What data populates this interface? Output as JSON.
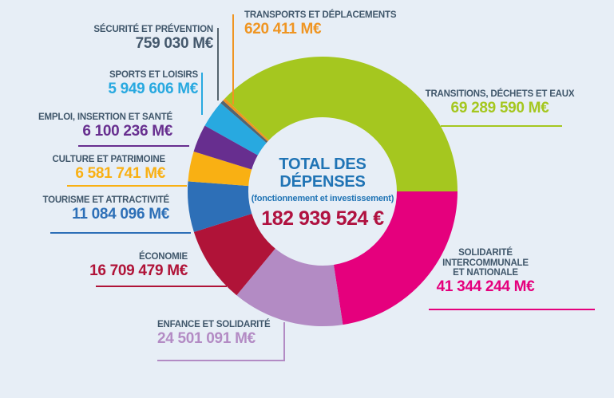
{
  "chart_data": {
    "type": "pie",
    "variant": "donut",
    "title": "TOTAL DES DÉPENSES",
    "subtitle": "(fonctionnement et investissement)",
    "total_label": "182 939 524 €",
    "total_value": 182939524,
    "unit": "M€",
    "rotation_deg": 223.65,
    "background": "#e7eef6",
    "label_color": "#40576b",
    "center_title_color": "#2074b5",
    "center_total_color": "#b01240",
    "segments": [
      {
        "slug": "transitions",
        "name": "TRANSITIONS, DÉCHETS ET EAUX",
        "value": 69289590,
        "display": "69 289 590 M€",
        "color": "#a5c71f"
      },
      {
        "slug": "solidarite",
        "name": "SOLIDARITÉ INTERCOMMUNALE ET NATIONALE",
        "name_lines": [
          "SOLIDARITÉ",
          "INTERCOMMUNALE",
          "ET NATIONALE"
        ],
        "value": 41344244,
        "display": "41 344 244 M€",
        "color": "#e5007d"
      },
      {
        "slug": "enfance",
        "name": "ENFANCE ET SOLIDARITÉ",
        "value": 24501091,
        "display": "24 501 091 M€",
        "color": "#b38bc4"
      },
      {
        "slug": "economie",
        "name": "ÉCONOMIE",
        "value": 16709479,
        "display": "16 709 479 M€",
        "color": "#b01338"
      },
      {
        "slug": "tourisme",
        "name": "TOURISME ET ATTRACTIVITÉ",
        "value": 11084096,
        "display": "11 084 096 M€",
        "color": "#2d6fb7"
      },
      {
        "slug": "culture",
        "name": "CULTURE ET PATRIMOINE",
        "value": 6581741,
        "display": "6 581 741 M€",
        "color": "#f9b013"
      },
      {
        "slug": "emploi",
        "name": "EMPLOI, INSERTION ET SANTÉ",
        "value": 6100236,
        "display": "6 100 236 M€",
        "color": "#672e8f"
      },
      {
        "slug": "sports",
        "name": "SPORTS ET LOISIRS",
        "value": 5949606,
        "display": "5 949 606 M€",
        "color": "#28a9e0"
      },
      {
        "slug": "securite",
        "name": "SÉCURITÉ ET PRÉVENTION",
        "value": 759030,
        "display": "759 030 M€",
        "color": "#55646e",
        "value_color": "#44586c"
      },
      {
        "slug": "transports",
        "name": "TRANSPORTS ET DÉPLACEMENTS",
        "value": 620411,
        "display": "620 411 M€",
        "color": "#ef9522"
      }
    ]
  }
}
